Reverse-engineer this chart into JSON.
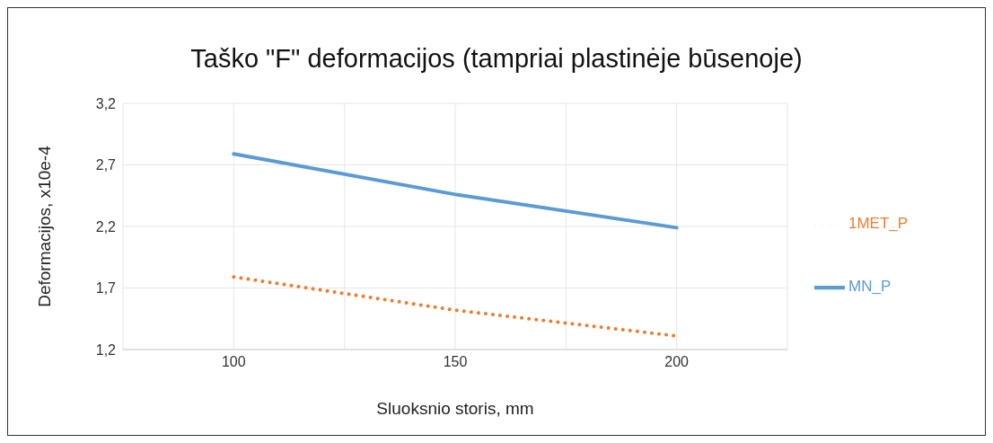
{
  "chart_data": {
    "type": "line",
    "title": "Taško \"F\" deformacijos (tampriai plastinėje būsenoje)",
    "xlabel": "Sluoksnio storis, mm",
    "ylabel": "Deformacijos, x10e-4",
    "x": [
      100,
      150,
      200
    ],
    "series": [
      {
        "name": "MN_P",
        "color": "#5b9bd5",
        "values": [
          2.79,
          2.46,
          2.19
        ],
        "line_style": "solid"
      },
      {
        "name": "1MET_P",
        "color": "#ed7d31",
        "values": [
          1.79,
          1.52,
          1.31
        ],
        "line_style": "dotted"
      }
    ],
    "xlim": [
      75,
      225
    ],
    "xticks": [
      {
        "value": 75,
        "label": null
      },
      100,
      {
        "value": 125,
        "label": null
      },
      150,
      {
        "value": 175,
        "label": null
      },
      200,
      {
        "value": 225,
        "label": null
      }
    ],
    "ylim": [
      1.2,
      3.2
    ],
    "yticks": [
      {
        "value": 1.2,
        "label": "1,2"
      },
      {
        "value": 1.7,
        "label": "1,7"
      },
      {
        "value": 2.2,
        "label": "2,2"
      },
      {
        "value": 2.7,
        "label": "2,7"
      },
      {
        "value": 3.2,
        "label": "3,2"
      }
    ],
    "grid": true,
    "legend": "right",
    "marker": "none"
  }
}
